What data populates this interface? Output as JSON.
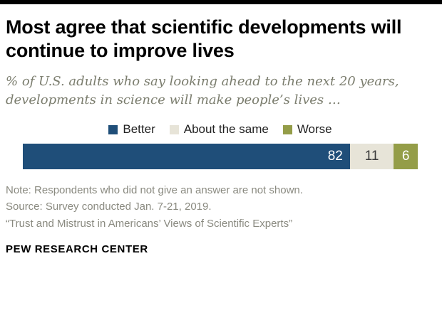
{
  "header": {
    "title": "Most agree that scientific developments will continue to improve lives",
    "subtitle": "% of U.S. adults who say looking ahead to the next 20 years, developments in science will make people’s lives …"
  },
  "chart_data": {
    "type": "bar",
    "orientation": "horizontal-stacked",
    "title": "Most agree that scientific developments will continue to improve lives",
    "subtitle": "% of U.S. adults who say looking ahead to the next 20 years, developments in science will make people’s lives …",
    "categories": [
      "Better",
      "About the same",
      "Worse"
    ],
    "values": [
      82,
      11,
      6
    ],
    "colors": [
      "#1f4e79",
      "#e7e4d8",
      "#949d48"
    ],
    "label_colors": [
      "#ffffff",
      "#3b3b3b",
      "#ffffff"
    ],
    "legend_position": "top",
    "grid": false
  },
  "legend": {
    "items": [
      {
        "label": "Better"
      },
      {
        "label": "About the same"
      },
      {
        "label": "Worse"
      }
    ]
  },
  "footnotes": {
    "note": "Note: Respondents who did not give an answer are not shown.",
    "source": "Source: Survey conducted Jan. 7-21, 2019.",
    "report": "“Trust and Mistrust in Americans’ Views of Scientific Experts”"
  },
  "footer": {
    "brand": "PEW RESEARCH CENTER"
  }
}
